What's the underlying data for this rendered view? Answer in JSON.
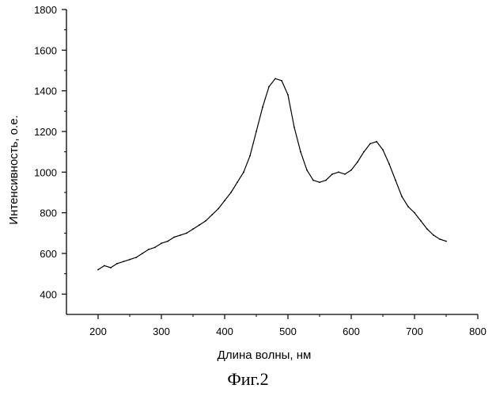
{
  "chart_data": {
    "type": "line",
    "xlabel": "Длина волны, нм",
    "ylabel": "Интенсивность, о.е.",
    "xlim": [
      150,
      800
    ],
    "ylim": [
      300,
      1800
    ],
    "xticks": [
      200,
      300,
      400,
      500,
      600,
      700,
      800
    ],
    "yticks": [
      400,
      600,
      800,
      1000,
      1200,
      1400,
      1600,
      1800
    ],
    "grid": false,
    "line_color": "#000000",
    "series": [
      {
        "x": [
          200,
          210,
          220,
          230,
          240,
          250,
          260,
          270,
          280,
          290,
          300,
          310,
          320,
          330,
          340,
          350,
          360,
          370,
          380,
          390,
          400,
          410,
          420,
          430,
          440,
          450,
          460,
          470,
          480,
          490,
          500,
          510,
          520,
          530,
          540,
          550,
          560,
          570,
          580,
          590,
          600,
          610,
          620,
          630,
          640,
          650,
          660,
          670,
          680,
          690,
          700,
          710,
          720,
          730,
          740,
          750
        ],
        "y": [
          520,
          540,
          530,
          550,
          560,
          570,
          580,
          600,
          620,
          630,
          650,
          660,
          680,
          690,
          700,
          720,
          740,
          760,
          790,
          820,
          860,
          900,
          950,
          1000,
          1080,
          1200,
          1320,
          1420,
          1460,
          1450,
          1380,
          1220,
          1100,
          1010,
          960,
          950,
          960,
          990,
          1000,
          990,
          1010,
          1050,
          1100,
          1140,
          1150,
          1110,
          1040,
          960,
          880,
          830,
          800,
          760,
          720,
          690,
          670,
          660
        ]
      }
    ]
  },
  "caption": "Фиг.2"
}
